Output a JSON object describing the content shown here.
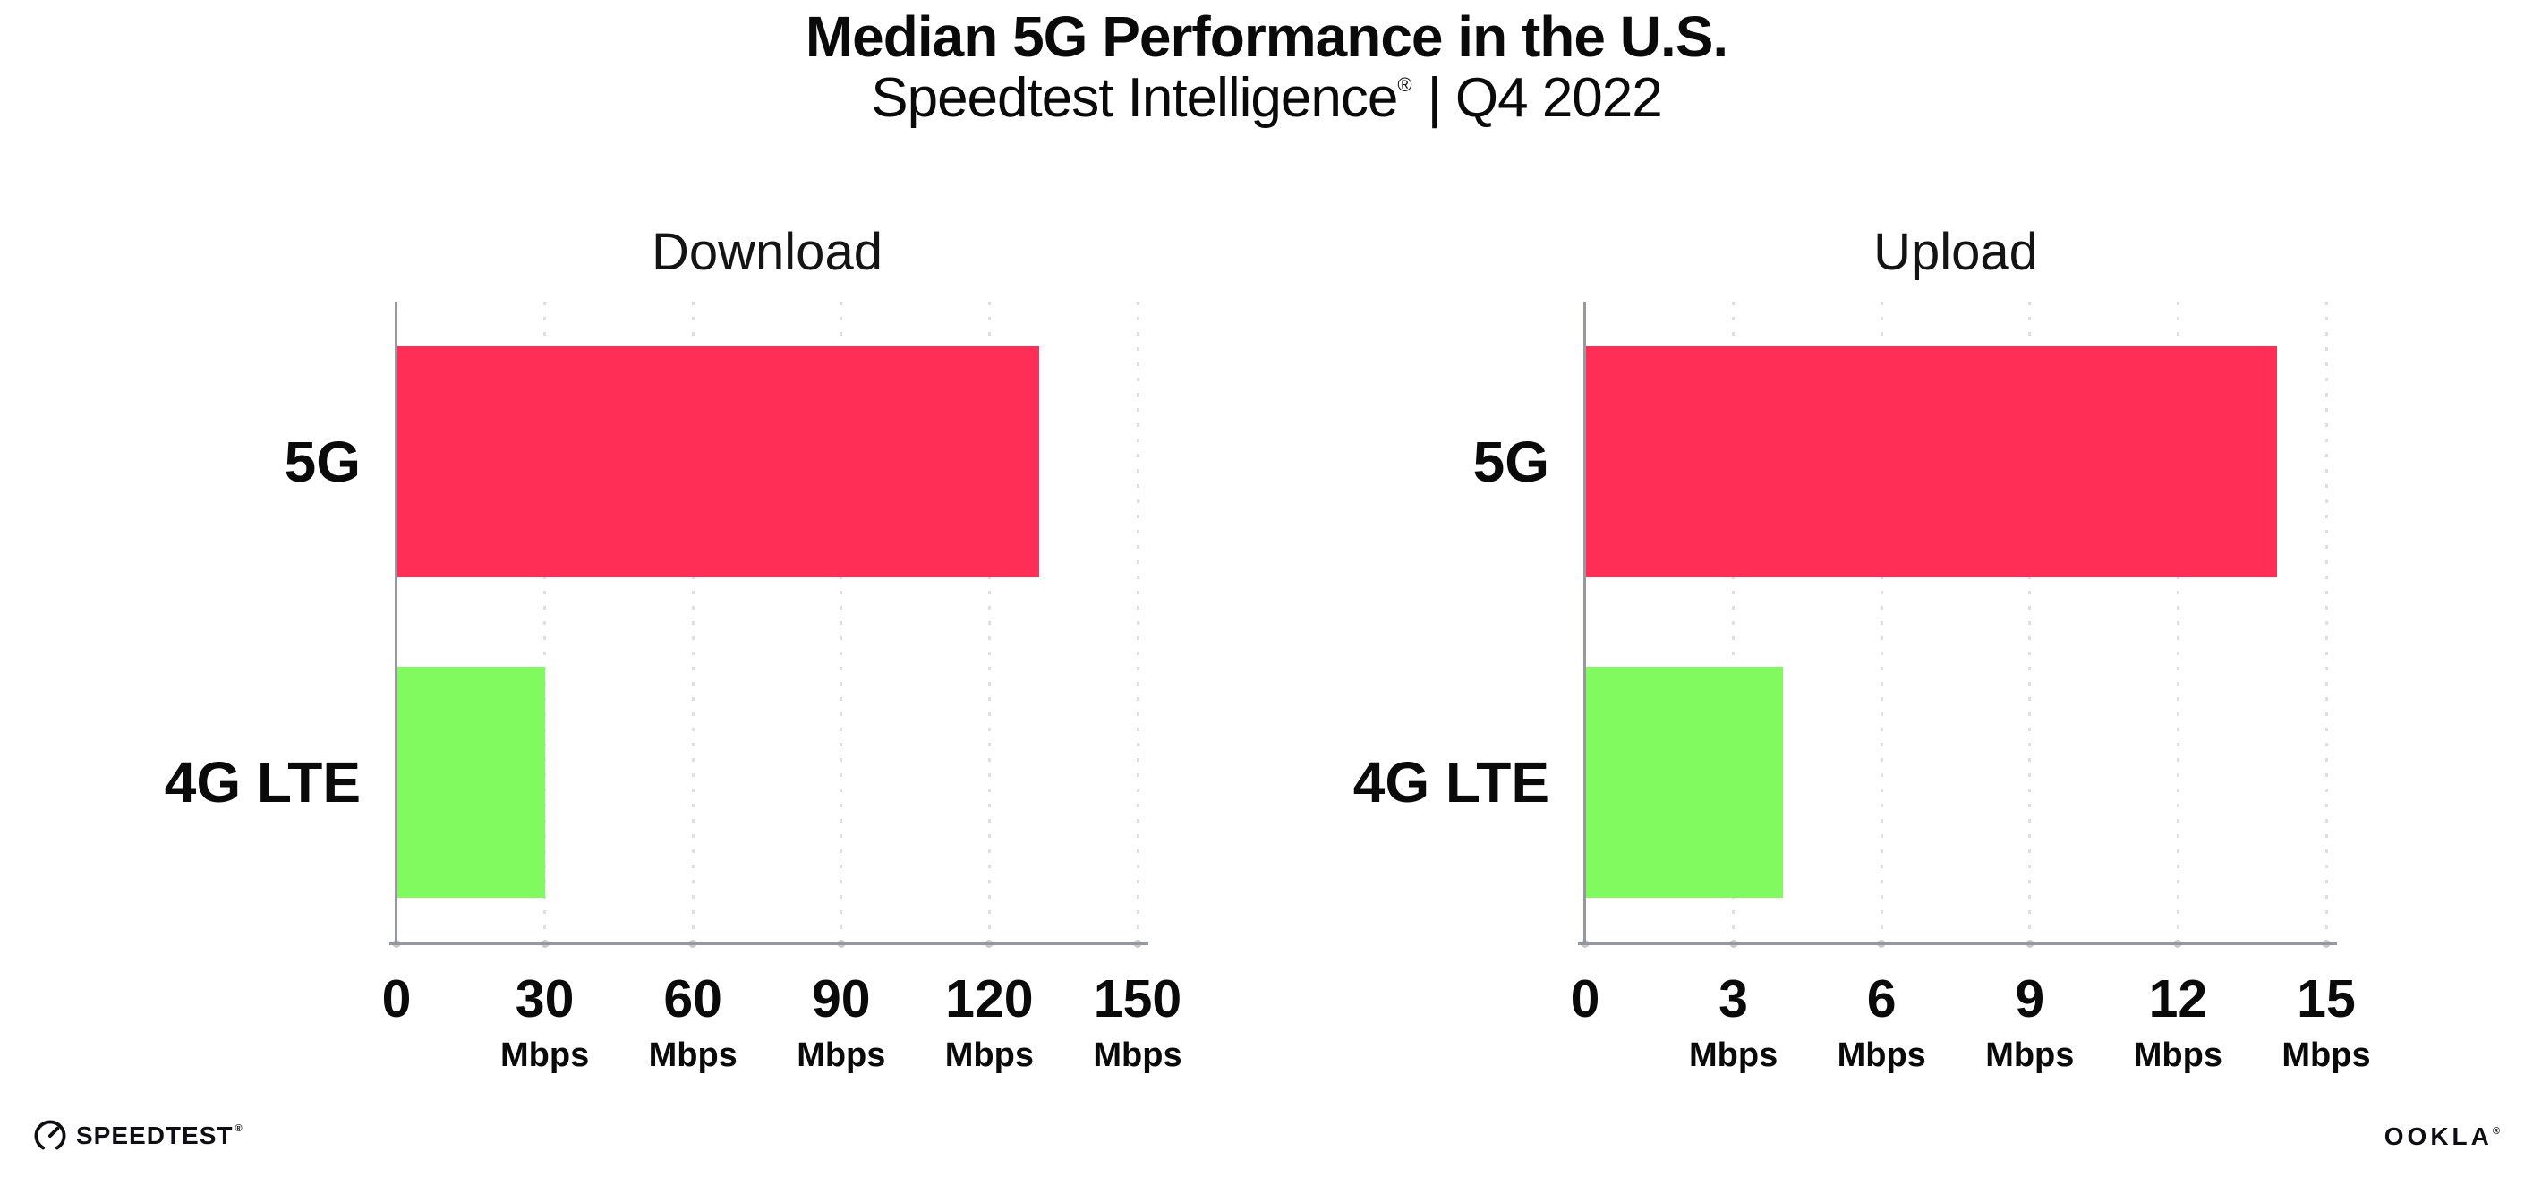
{
  "header": {
    "title": "Median 5G Performance in the U.S.",
    "subtitle_brand": "Speedtest Intelligence",
    "subtitle_reg": "®",
    "subtitle_rest": "| Q4 2022"
  },
  "footer": {
    "speedtest": "SPEEDTEST",
    "speedtest_mark": "®",
    "ookla": "OOKLA",
    "ookla_mark": "®"
  },
  "colors": {
    "bar_5g": "#FF2E56",
    "bar_4g": "#80FA5F",
    "gridline": "#DEDEE9",
    "axis": "#97979F",
    "tick_dot": "#C9C9D6",
    "text": "#0A0A0A"
  },
  "chart_data": [
    {
      "type": "bar",
      "orientation": "horizontal",
      "title": "Download",
      "unit": "Mbps",
      "categories": [
        "5G",
        "4G LTE"
      ],
      "values": [
        130,
        30
      ],
      "xlim": [
        0,
        150
      ],
      "xticks": [
        0,
        30,
        60,
        90,
        120,
        150
      ],
      "grid": "vertical dotted",
      "legend": "none"
    },
    {
      "type": "bar",
      "orientation": "horizontal",
      "title": "Upload",
      "unit": "Mbps",
      "categories": [
        "5G",
        "4G LTE"
      ],
      "values": [
        14,
        4
      ],
      "xlim": [
        0,
        15
      ],
      "xticks": [
        0,
        3,
        6,
        9,
        12,
        15
      ],
      "grid": "vertical dotted",
      "legend": "none"
    }
  ]
}
